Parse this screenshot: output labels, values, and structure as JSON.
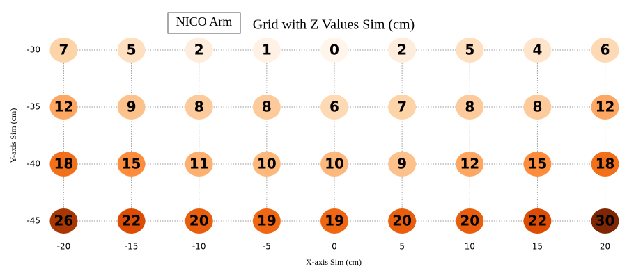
{
  "chart_data": {
    "type": "scatter",
    "title": "Grid with Z Values Sim (cm)",
    "annotation": "NICO Arm",
    "x_label": "X-axis Sim (cm)",
    "y_label": "Y-axis Sim (cm)",
    "x": [
      -20,
      -15,
      -10,
      -5,
      0,
      5,
      10,
      15,
      20,
      -20,
      -15,
      -10,
      -5,
      0,
      5,
      10,
      15,
      20,
      -20,
      -15,
      -10,
      -5,
      0,
      5,
      10,
      15,
      20,
      -20,
      -15,
      -10,
      -5,
      0,
      5,
      10,
      15,
      20
    ],
    "y": [
      -30,
      -30,
      -30,
      -30,
      -30,
      -30,
      -30,
      -30,
      -30,
      -35,
      -35,
      -35,
      -35,
      -35,
      -35,
      -35,
      -35,
      -35,
      -40,
      -40,
      -40,
      -40,
      -40,
      -40,
      -40,
      -40,
      -40,
      -45,
      -45,
      -45,
      -45,
      -45,
      -45,
      -45,
      -45,
      -45
    ],
    "z": [
      7,
      5,
      2,
      1,
      0,
      2,
      5,
      4,
      6,
      12,
      9,
      8,
      8,
      6,
      7,
      8,
      8,
      12,
      18,
      15,
      11,
      10,
      10,
      9,
      12,
      15,
      18,
      26,
      22,
      20,
      19,
      19,
      20,
      20,
      22,
      30
    ],
    "colormap": [
      "#fff5eb",
      "#fee6ce",
      "#fdd0a2",
      "#fdae6b",
      "#fd8d3c",
      "#f16913",
      "#d94801",
      "#a63603",
      "#7f2704"
    ],
    "xlim": [
      -21,
      21
    ],
    "xticks": [
      -20,
      -15,
      -10,
      -5,
      0,
      5,
      10,
      15,
      20
    ],
    "ylim": [
      -46,
      -29
    ],
    "yticks": [
      -30,
      -35,
      -40,
      -45
    ],
    "grid": true
  }
}
